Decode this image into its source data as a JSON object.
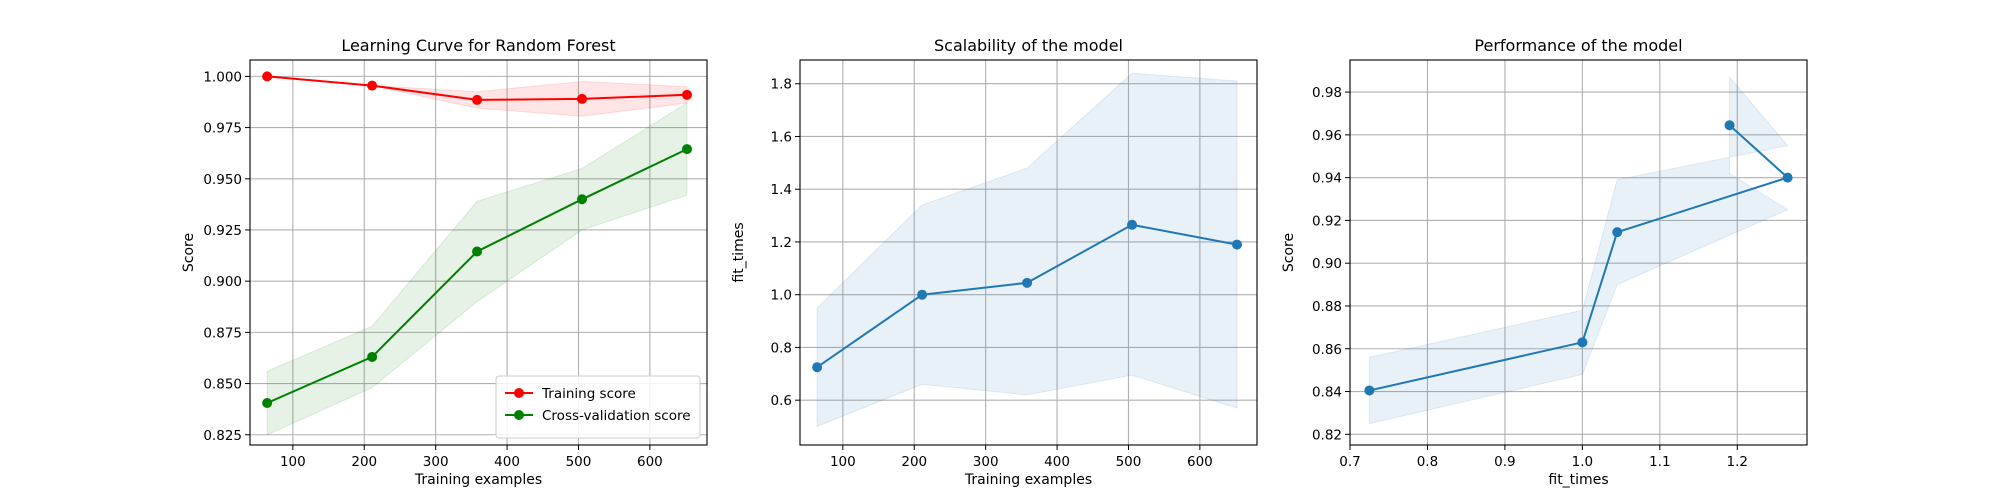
{
  "chart_data": [
    {
      "type": "line",
      "title": "Learning Curve for Random Forest",
      "xlabel": "Training examples",
      "ylabel": "Score",
      "xlim": [
        40,
        680
      ],
      "ylim": [
        0.82,
        1.008
      ],
      "xticks": [
        100,
        200,
        300,
        400,
        500,
        600
      ],
      "yticks": [
        0.825,
        0.85,
        0.875,
        0.9,
        0.925,
        0.95,
        0.975,
        1.0
      ],
      "yticks_labels": [
        "0.825",
        "0.850",
        "0.875",
        "0.900",
        "0.925",
        "0.950",
        "0.975",
        "1.000"
      ],
      "grid": true,
      "legend_position": "bottom-right",
      "series": [
        {
          "name": "Training score",
          "color": "#ff0000",
          "x": [
            64,
            211,
            358,
            505,
            652
          ],
          "y": [
            1.0,
            0.9955,
            0.9885,
            0.989,
            0.991
          ],
          "band_lower": [
            1.0,
            0.9955,
            0.9845,
            0.9805,
            0.987
          ],
          "band_upper": [
            1.0,
            0.9955,
            0.9925,
            0.9975,
            0.995
          ]
        },
        {
          "name": "Cross-validation score",
          "color": "#008000",
          "x": [
            64,
            211,
            358,
            505,
            652
          ],
          "y": [
            0.8405,
            0.863,
            0.9145,
            0.94,
            0.9645
          ],
          "band_lower": [
            0.825,
            0.848,
            0.89,
            0.925,
            0.942
          ],
          "band_upper": [
            0.856,
            0.878,
            0.939,
            0.955,
            0.987
          ]
        }
      ]
    },
    {
      "type": "line",
      "title": "Scalability of the model",
      "xlabel": "Training examples",
      "ylabel": "fit_times",
      "xlim": [
        40,
        680
      ],
      "ylim": [
        0.43,
        1.89
      ],
      "xticks": [
        100,
        200,
        300,
        400,
        500,
        600
      ],
      "yticks": [
        0.6,
        0.8,
        1.0,
        1.2,
        1.4,
        1.6,
        1.8
      ],
      "yticks_labels": [
        "0.6",
        "0.8",
        "1.0",
        "1.2",
        "1.4",
        "1.6",
        "1.8"
      ],
      "grid": true,
      "series": [
        {
          "color": "#1f77b4",
          "x": [
            64,
            211,
            358,
            505,
            652
          ],
          "y": [
            0.725,
            1.0,
            1.045,
            1.265,
            1.19
          ],
          "band_lower": [
            0.5,
            0.66,
            0.62,
            0.695,
            0.57
          ],
          "band_upper": [
            0.95,
            1.34,
            1.48,
            1.84,
            1.81
          ]
        }
      ]
    },
    {
      "type": "line",
      "title": "Performance of the model",
      "xlabel": "fit_times",
      "ylabel": "Score",
      "xlim": [
        0.7,
        1.29
      ],
      "ylim": [
        0.815,
        0.995
      ],
      "xticks": [
        0.7,
        0.8,
        0.9,
        1.0,
        1.1,
        1.2
      ],
      "xticks_labels": [
        "0.7",
        "0.8",
        "0.9",
        "1.0",
        "1.1",
        "1.2"
      ],
      "yticks": [
        0.82,
        0.84,
        0.86,
        0.88,
        0.9,
        0.92,
        0.94,
        0.96,
        0.98
      ],
      "yticks_labels": [
        "0.82",
        "0.84",
        "0.86",
        "0.88",
        "0.90",
        "0.92",
        "0.94",
        "0.96",
        "0.98"
      ],
      "grid": true,
      "series": [
        {
          "color": "#1f77b4",
          "x": [
            0.725,
            1.0,
            1.045,
            1.265,
            1.19
          ],
          "y": [
            0.8405,
            0.863,
            0.9145,
            0.94,
            0.9645
          ],
          "band_lower": [
            0.825,
            0.848,
            0.89,
            0.925,
            0.942
          ],
          "band_upper": [
            0.856,
            0.878,
            0.939,
            0.955,
            0.987
          ]
        }
      ]
    }
  ]
}
